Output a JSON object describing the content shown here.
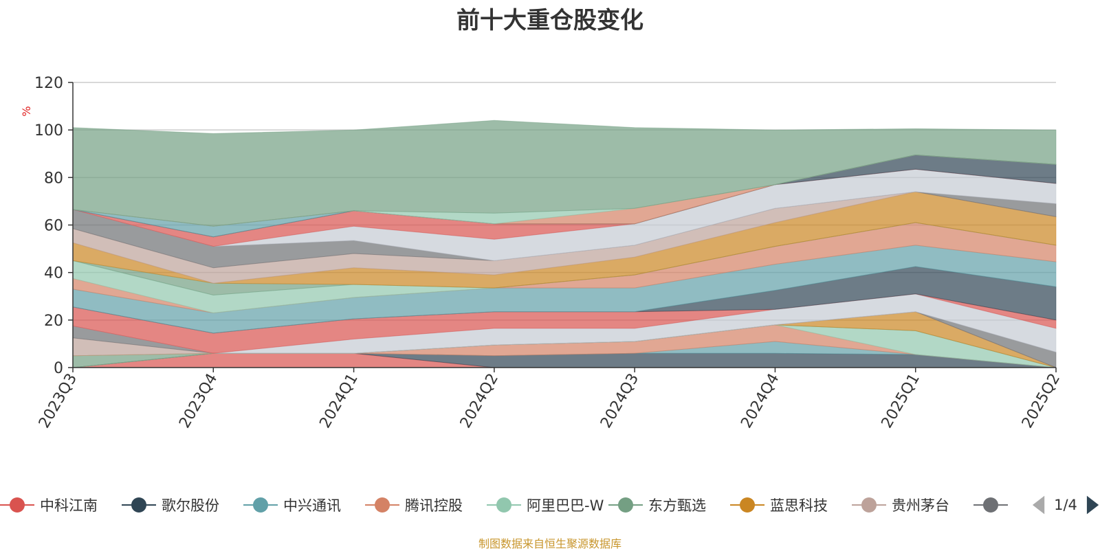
{
  "chart_data": {
    "type": "area",
    "stacked": true,
    "title": "前十大重仓股变化",
    "ylabel": "%",
    "ylim": [
      0,
      120
    ],
    "yticks": [
      0,
      20,
      40,
      60,
      80,
      100,
      120
    ],
    "grid": true,
    "legend_position": "bottom",
    "categories": [
      "2023Q3",
      "2023Q4",
      "2024Q1",
      "2024Q2",
      "2024Q3",
      "2024Q4",
      "2025Q1",
      "2025Q2"
    ],
    "series": [
      {
        "name": "中科江南",
        "color": "#d9534f",
        "values": [
          0,
          6,
          6,
          0,
          0,
          0,
          0,
          0
        ]
      },
      {
        "name": "歌尔股份",
        "color": "#2f4554",
        "values": [
          0,
          0,
          0,
          5,
          6,
          6,
          5.5,
          0
        ]
      },
      {
        "name": "中兴通讯",
        "color": "#61a0a8",
        "values": [
          0,
          0,
          0,
          0,
          0,
          5,
          0,
          0
        ]
      },
      {
        "name": "腾讯控股",
        "color": "#d48265",
        "values": [
          0,
          0,
          0,
          4.5,
          5,
          7,
          0,
          0
        ]
      },
      {
        "name": "阿里巴巴-W",
        "color": "#91c7ae",
        "values": [
          0,
          0,
          0,
          0,
          0,
          0,
          10,
          0
        ]
      },
      {
        "name": "东方甄选",
        "color": "#749f83",
        "values": [
          5,
          0,
          0,
          0,
          0,
          0,
          0,
          0
        ]
      },
      {
        "name": "蓝思科技",
        "color": "#ca8622",
        "values": [
          0,
          0,
          0,
          0,
          0,
          0,
          8,
          0
        ]
      },
      {
        "name": "贵州茅台",
        "color": "#bda29a",
        "values": [
          7.5,
          0,
          0,
          0,
          0,
          0,
          0,
          0
        ]
      },
      {
        "name": "",
        "color": "#6e7074",
        "values": [
          5,
          0,
          0,
          0,
          0,
          0,
          0,
          6.5
        ]
      },
      {
        "name": "",
        "color": "#c5cad3",
        "values": [
          0,
          0,
          6,
          7,
          5.5,
          6.5,
          7.5,
          10
        ]
      },
      {
        "name": "",
        "color": "#d9534f",
        "values": [
          8,
          8.5,
          8.5,
          7,
          7,
          0,
          0,
          3.5
        ]
      },
      {
        "name": "",
        "color": "#2f4554",
        "values": [
          0,
          0,
          0,
          0,
          0,
          8,
          11.5,
          14
        ]
      },
      {
        "name": "",
        "color": "#61a0a8",
        "values": [
          7.5,
          8.5,
          9,
          10,
          10,
          11,
          9,
          10.5
        ]
      },
      {
        "name": "",
        "color": "#d48265",
        "values": [
          4.5,
          0,
          0,
          0,
          5.5,
          7.5,
          9.5,
          7
        ]
      },
      {
        "name": "",
        "color": "#91c7ae",
        "values": [
          7.5,
          7.5,
          5.5,
          0,
          0,
          0,
          0,
          0
        ]
      },
      {
        "name": "",
        "color": "#749f83",
        "values": [
          0,
          5,
          0,
          0,
          0,
          0,
          0,
          0
        ]
      },
      {
        "name": "",
        "color": "#ca8622",
        "values": [
          7.5,
          0,
          7,
          5.5,
          7.5,
          10,
          13,
          12
        ]
      },
      {
        "name": "",
        "color": "#bda29a",
        "values": [
          6,
          6.5,
          6,
          6,
          5,
          6,
          0,
          0
        ]
      },
      {
        "name": "",
        "color": "#6e7074",
        "values": [
          8,
          9,
          5.5,
          0,
          0,
          0,
          0,
          5.5
        ]
      },
      {
        "name": "",
        "color": "#c5cad3",
        "values": [
          0,
          0,
          6,
          9,
          9,
          10,
          9.5,
          8.5
        ]
      },
      {
        "name": "",
        "color": "#d9534f",
        "values": [
          0,
          4,
          6.5,
          6.5,
          0,
          0,
          0,
          0
        ]
      },
      {
        "name": "",
        "color": "#2f4554",
        "values": [
          0,
          0,
          0,
          0,
          0,
          0,
          6,
          8
        ]
      },
      {
        "name": "",
        "color": "#61a0a8",
        "values": [
          0,
          4.5,
          0,
          0,
          0,
          0,
          0,
          0
        ]
      },
      {
        "name": "",
        "color": "#d48265",
        "values": [
          0,
          0,
          0,
          0,
          6.5,
          0,
          0,
          0
        ]
      },
      {
        "name": "",
        "color": "#91c7ae",
        "values": [
          0,
          0,
          0,
          4.5,
          0,
          0,
          0,
          0
        ]
      },
      {
        "name": "",
        "color": "#749f83",
        "values": [
          34.5,
          39,
          34,
          39,
          34,
          23,
          11,
          14.5
        ]
      }
    ]
  },
  "legend": {
    "page_text": "1/4",
    "visible_count": 9
  },
  "source_note": "制图数据来自恒生聚源数据库"
}
